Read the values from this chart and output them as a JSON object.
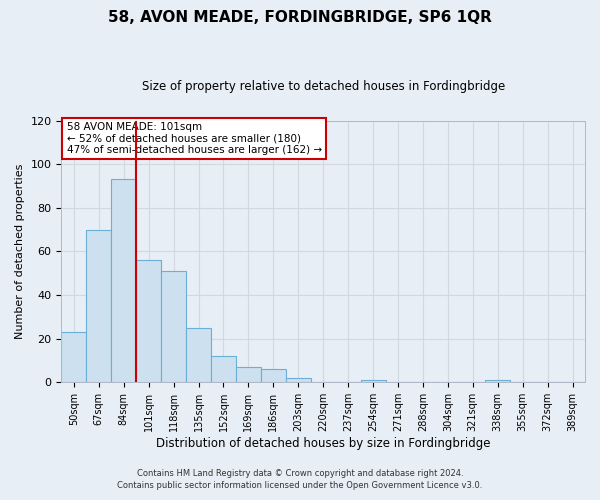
{
  "title": "58, AVON MEADE, FORDINGBRIDGE, SP6 1QR",
  "subtitle": "Size of property relative to detached houses in Fordingbridge",
  "xlabel": "Distribution of detached houses by size in Fordingbridge",
  "ylabel": "Number of detached properties",
  "bar_labels": [
    "50sqm",
    "67sqm",
    "84sqm",
    "101sqm",
    "118sqm",
    "135sqm",
    "152sqm",
    "169sqm",
    "186sqm",
    "203sqm",
    "220sqm",
    "237sqm",
    "254sqm",
    "271sqm",
    "288sqm",
    "304sqm",
    "321sqm",
    "338sqm",
    "355sqm",
    "372sqm",
    "389sqm"
  ],
  "bar_values": [
    23,
    70,
    93,
    56,
    51,
    25,
    12,
    7,
    6,
    2,
    0,
    0,
    1,
    0,
    0,
    0,
    0,
    1,
    0,
    0,
    0
  ],
  "bar_color": "#cce0f0",
  "bar_edge_color": "#6aafd6",
  "vline_color": "#cc0000",
  "annotation_title": "58 AVON MEADE: 101sqm",
  "annotation_line1": "← 52% of detached houses are smaller (180)",
  "annotation_line2": "47% of semi-detached houses are larger (162) →",
  "annotation_box_color": "white",
  "annotation_box_edge": "#cc0000",
  "ylim": [
    0,
    120
  ],
  "yticks": [
    0,
    20,
    40,
    60,
    80,
    100,
    120
  ],
  "footer_line1": "Contains HM Land Registry data © Crown copyright and database right 2024.",
  "footer_line2": "Contains public sector information licensed under the Open Government Licence v3.0.",
  "background_color": "#e8eef5",
  "grid_color": "#d0d8e0",
  "plot_bg_color": "#e8eef5"
}
